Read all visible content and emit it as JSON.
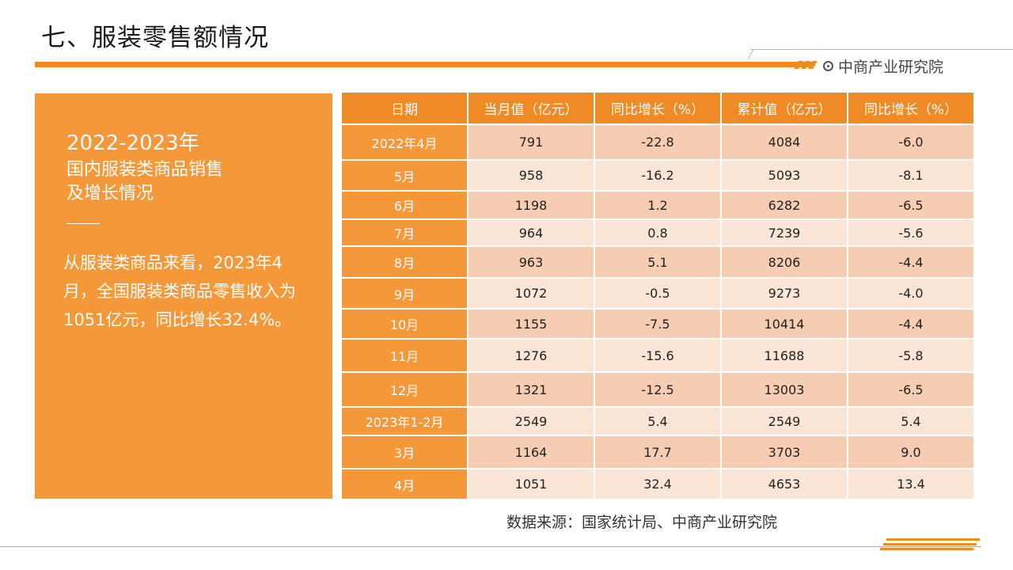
{
  "title": "七、服装零售额情况",
  "brand": "中商产业研究院",
  "panel": {
    "year": "2022-2023年",
    "subtitle": "国内服装类商品销售\n及增长情况",
    "body": "从服装类商品来看，2023年4月，全国服装类商品零售收入为1051亿元，同比增长32.4%。"
  },
  "table": {
    "headers": [
      "日期",
      "当月值（亿元）",
      "同比增长（%）",
      "累计值（亿元）",
      "同比增长（%）"
    ],
    "rows": [
      [
        "2022年4月",
        "791",
        "-22.8",
        "4084",
        "-6.0"
      ],
      [
        "5月",
        "958",
        "-16.2",
        "5093",
        "-8.1"
      ],
      [
        "6月",
        "1198",
        "1.2",
        "6282",
        "-6.5"
      ],
      [
        "7月",
        "964",
        "0.8",
        "7239",
        "-5.6"
      ],
      [
        "8月",
        "963",
        "5.1",
        "8206",
        "-4.4"
      ],
      [
        "9月",
        "1072",
        "-0.5",
        "9273",
        "-4.0"
      ],
      [
        "10月",
        "1155",
        "-7.5",
        "10414",
        "-4.4"
      ],
      [
        "11月",
        "1276",
        "-15.6",
        "11688",
        "-5.8"
      ],
      [
        "12月",
        "1321",
        "-12.5",
        "13003",
        "-6.5"
      ],
      [
        "2023年1-2月",
        "2549",
        "5.4",
        "2549",
        "5.4"
      ],
      [
        "3月",
        "1164",
        "17.7",
        "3703",
        "9.0"
      ],
      [
        "4月",
        "1051",
        "32.4",
        "4653",
        "13.4"
      ]
    ]
  },
  "source": "数据来源：国家统计局、中商产业研究院",
  "colors": {
    "accent": "#f08a24",
    "panel": "#f5983a",
    "row_dark": "#f6ccb2",
    "row_light": "#fbe5d6"
  }
}
